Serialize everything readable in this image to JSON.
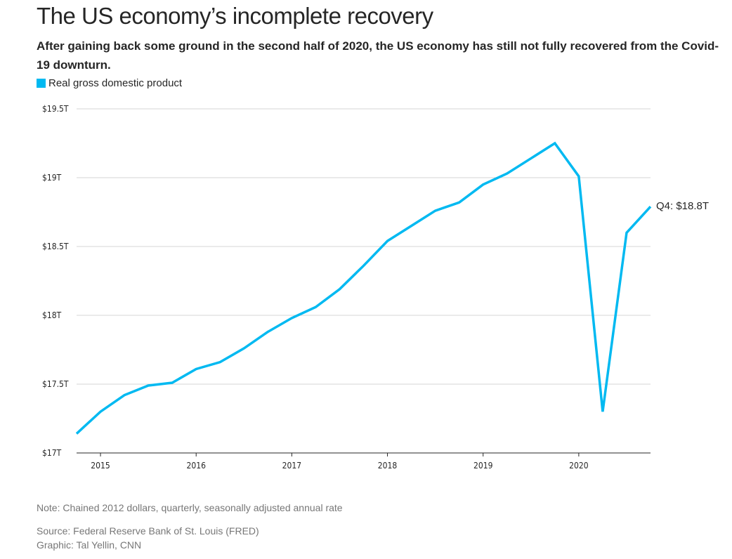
{
  "chart_data": {
    "type": "line",
    "title": "The US economy’s incomplete recovery",
    "subtitle": "After gaining back some ground in the second half of 2020, the US economy has still not fully recovered from the Covid-19 downturn.",
    "legend": [
      {
        "name": "Real gross domestic product",
        "color": "#00b9f1"
      }
    ],
    "xlabel": "",
    "ylabel": "",
    "xlim": [
      2014.75,
      2020.75
    ],
    "ylim": [
      17,
      19.5
    ],
    "x_ticks": [
      2015,
      2016,
      2017,
      2018,
      2019,
      2020
    ],
    "x_tick_labels": [
      "2015",
      "2016",
      "2017",
      "2018",
      "2019",
      "2020"
    ],
    "y_ticks": [
      17,
      17.5,
      18,
      18.5,
      19,
      19.5
    ],
    "y_tick_labels": [
      "$17T",
      "$17.5T",
      "$18T",
      "$18.5T",
      "$19T",
      "$19.5T"
    ],
    "grid": true,
    "series": [
      {
        "name": "Real gross domestic product",
        "color": "#00b9f1",
        "x": [
          2014.75,
          2015,
          2015.25,
          2015.5,
          2015.75,
          2016,
          2016.25,
          2016.5,
          2016.75,
          2017,
          2017.25,
          2017.5,
          2017.75,
          2018,
          2018.25,
          2018.5,
          2018.75,
          2019,
          2019.25,
          2019.5,
          2019.75,
          2020,
          2020.25,
          2020.5,
          2020.75
        ],
        "values": [
          17.14,
          17.3,
          17.42,
          17.49,
          17.51,
          17.61,
          17.66,
          17.76,
          17.88,
          17.98,
          18.06,
          18.19,
          18.36,
          18.54,
          18.65,
          18.76,
          18.82,
          18.95,
          19.03,
          19.14,
          19.25,
          19.01,
          17.3,
          18.6,
          18.79
        ]
      }
    ],
    "annotations": [
      {
        "text": "Q4: $18.8T"
      }
    ],
    "note": "Note: Chained 2012 dollars, quarterly, seasonally adjusted annual rate",
    "source": "Source: Federal Reserve Bank of St. Louis (FRED)",
    "credit": "Graphic: Tal Yellin, CNN"
  }
}
